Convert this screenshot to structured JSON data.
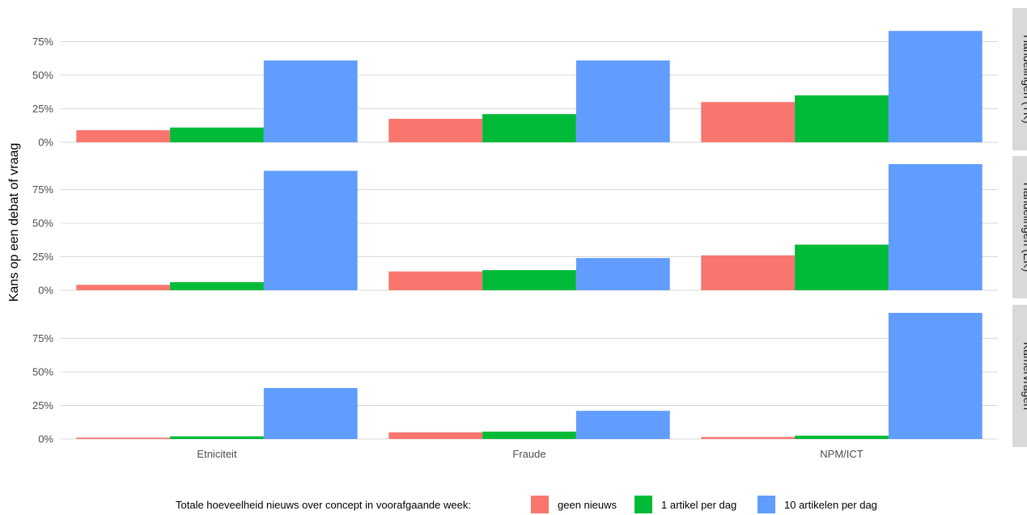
{
  "chart_data": {
    "type": "bar",
    "ylabel": "Kans op een debat of vraag",
    "y_ticks": [
      "0%",
      "25%",
      "50%",
      "75%"
    ],
    "ylim": [
      0,
      0.83
    ],
    "categories": [
      "Etniciteit",
      "Fraude",
      "NPM/ICT"
    ],
    "legend": {
      "title": "Totale hoeveelheid nieuws over concept in voorafgaande week:",
      "position": "bottom",
      "entries": [
        {
          "name": "geen nieuws",
          "color": "#F8766D"
        },
        {
          "name": "1 artikel per dag",
          "color": "#00BA38"
        },
        {
          "name": "10 artikelen per dag",
          "color": "#619CFF"
        }
      ]
    },
    "panels": [
      {
        "strip": "Handelingen (TK)",
        "series": [
          {
            "name": "geen nieuws",
            "values": [
              0.09,
              0.175,
              0.3
            ]
          },
          {
            "name": "1 artikel per dag",
            "values": [
              0.11,
              0.21,
              0.35
            ]
          },
          {
            "name": "10 artikelen per dag",
            "values": [
              0.61,
              0.61,
              0.83
            ]
          }
        ]
      },
      {
        "strip": "Handelingen (EK)",
        "series": [
          {
            "name": "geen nieuws",
            "values": [
              0.04,
              0.14,
              0.26
            ]
          },
          {
            "name": "1 artikel per dag",
            "values": [
              0.06,
              0.15,
              0.34
            ]
          },
          {
            "name": "10 artikelen per dag",
            "values": [
              0.89,
              0.24,
              0.94
            ]
          }
        ]
      },
      {
        "strip": "Kamervragen",
        "series": [
          {
            "name": "geen nieuws",
            "values": [
              0.01,
              0.05,
              0.015
            ]
          },
          {
            "name": "1 artikel per dag",
            "values": [
              0.02,
              0.055,
              0.025
            ]
          },
          {
            "name": "10 artikelen per dag",
            "values": [
              0.38,
              0.21,
              0.94
            ]
          }
        ]
      }
    ]
  }
}
